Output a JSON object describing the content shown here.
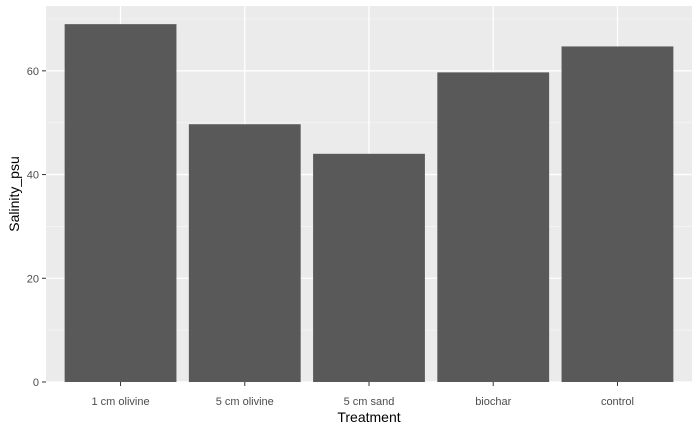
{
  "chart_data": {
    "type": "bar",
    "categories": [
      "1 cm olivine",
      "5 cm olivine",
      "5 cm sand",
      "biochar",
      "control"
    ],
    "values": [
      69,
      49.7,
      44,
      59.7,
      64.7
    ],
    "title": "",
    "xlabel": "Treatment",
    "ylabel": "Salinity_psu",
    "ylim": [
      0,
      72.5
    ],
    "yticks": [
      0,
      20,
      40,
      60
    ],
    "grid": true,
    "colors": {
      "bar": "#595959",
      "panel": "#ebebeb",
      "grid_major": "#ffffff",
      "grid_minor": "#f5f5f5",
      "tick": "#333333"
    }
  }
}
